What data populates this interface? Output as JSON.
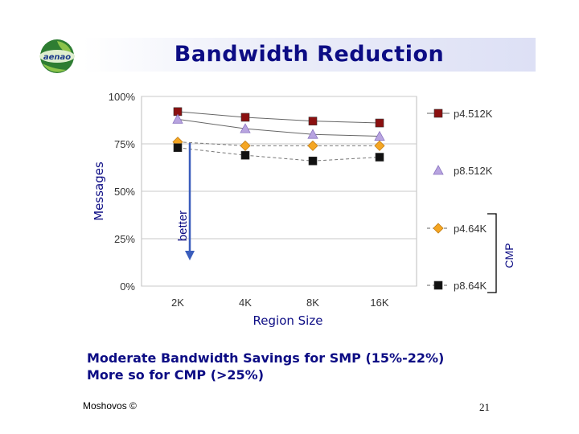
{
  "slide": {
    "title": "Bandwidth Reduction",
    "logo_text": "aenao",
    "bullet_lines": [
      "Moderate Bandwidth Savings for SMP (15%-22%)",
      "More so for CMP (>25%)"
    ],
    "footer": "Moshovos ©",
    "page_number": "21",
    "colors": {
      "title": "#0c0c84",
      "text": "#0c0c84"
    }
  },
  "chart_data": {
    "type": "line",
    "title": "",
    "categories": [
      "2K",
      "4K",
      "8K",
      "16K"
    ],
    "yticks": [
      "100%",
      "75%",
      "50%",
      "25%",
      "0%"
    ],
    "ylim": [
      0,
      100
    ],
    "xlabel": "Region Size",
    "ylabel": "Messages",
    "grid": true,
    "legend_position": "right",
    "series": [
      {
        "name": "p4.512K",
        "values": [
          92,
          89,
          87,
          86
        ],
        "color": "#8b1010",
        "marker": "square",
        "dash": "solid"
      },
      {
        "name": "p8.512K",
        "values": [
          88,
          83,
          80,
          79
        ],
        "color": "#b8a4e0",
        "marker": "triangle",
        "dash": "solid"
      },
      {
        "name": "p4.64K",
        "values": [
          76,
          74,
          74,
          74
        ],
        "color": "#f5a623",
        "marker": "diamond",
        "dash": "dashed"
      },
      {
        "name": "p8.64K",
        "values": [
          73,
          69,
          66,
          68
        ],
        "color": "#111111",
        "marker": "square",
        "dash": "dashed"
      }
    ],
    "annotations": {
      "arrow_label": "better",
      "bracket_label": "CMP"
    }
  }
}
